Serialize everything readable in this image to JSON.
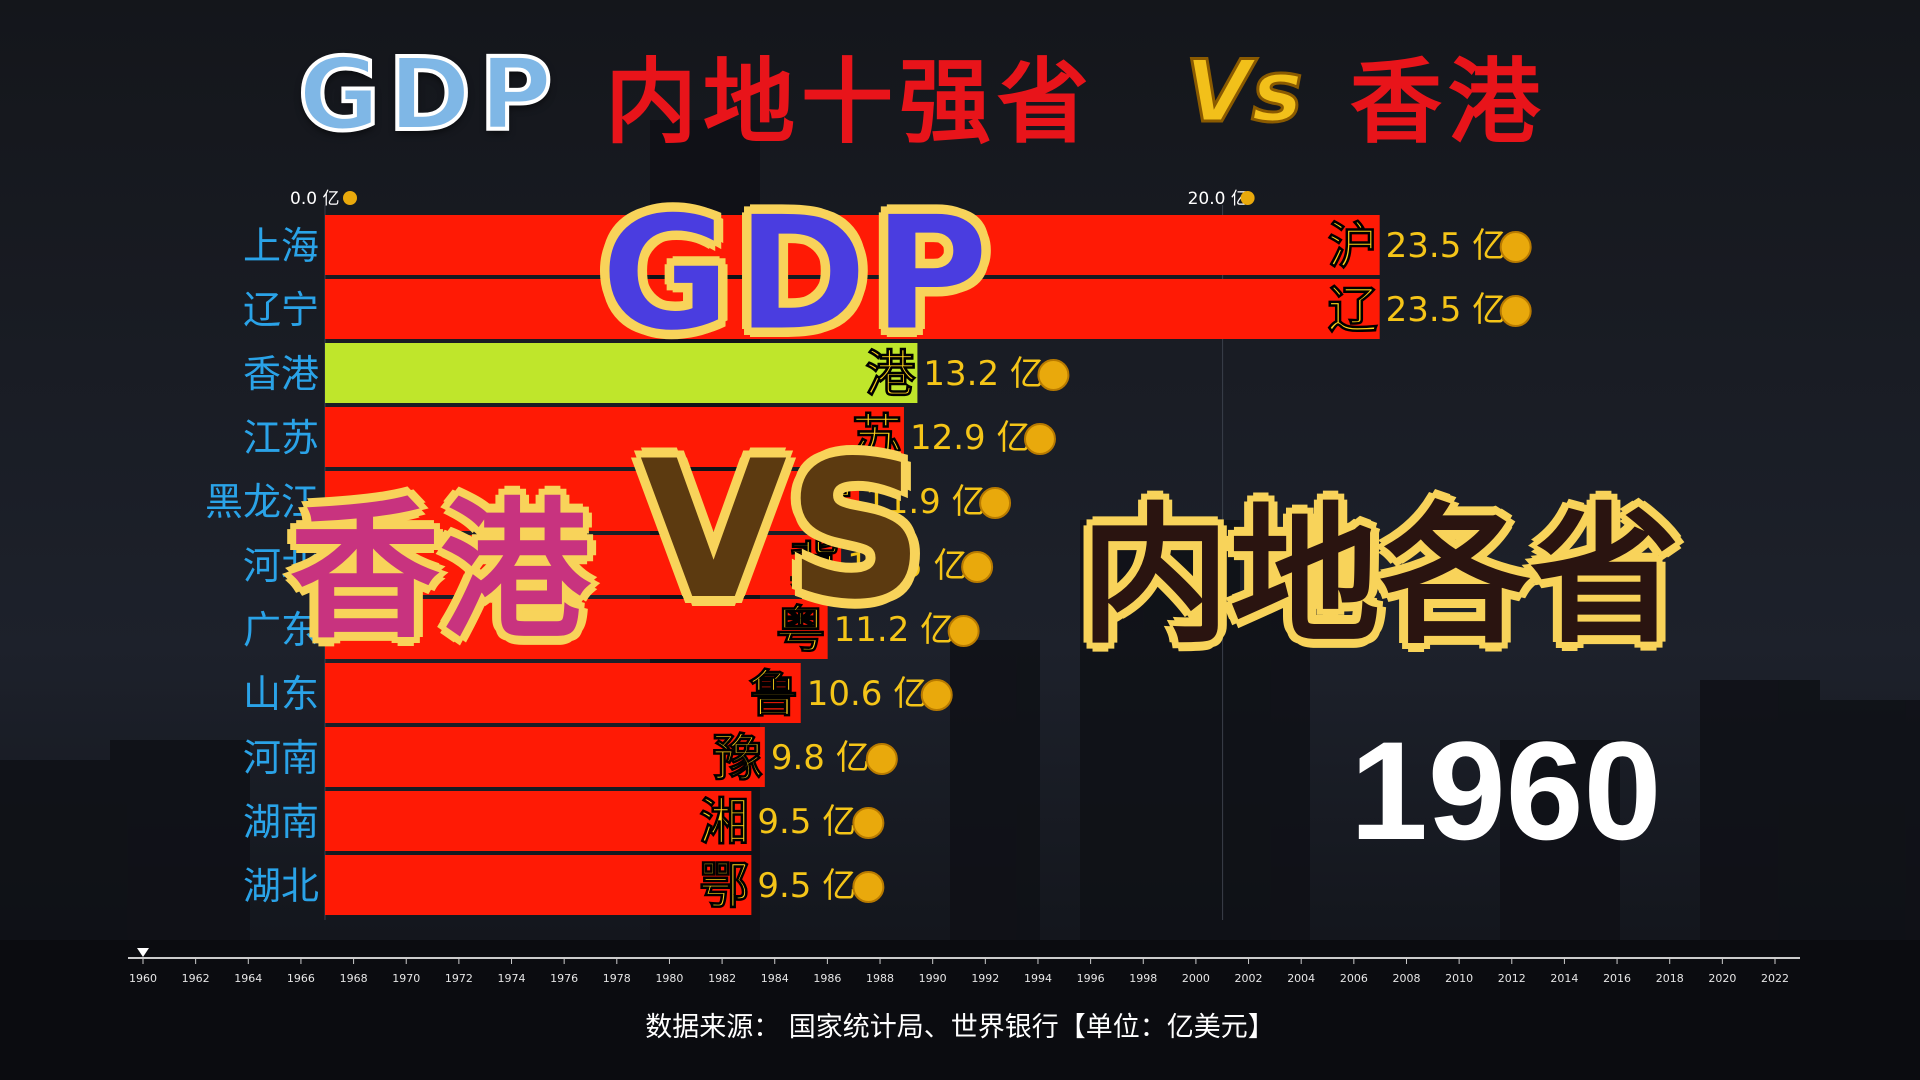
{
  "title": {
    "logo_text": "GDP",
    "left_text": "内地十强省",
    "vs_text": "Vs",
    "right_text": "香港"
  },
  "overlay": {
    "big_gdp": "GDP",
    "hongkong": "香港",
    "vs": "VS",
    "mainland": "内地各省"
  },
  "current_year": "1960",
  "source": "数据来源：  国家统计局、世界银行【单位：亿美元】",
  "colors": {
    "mainland_bar": "#ff1a05",
    "hongkong_bar": "#bfe62b",
    "province_label": "#2aa3e8",
    "value_label": "#f5c518",
    "abbr_label": "#ffd21a"
  },
  "chart_data": {
    "type": "bar",
    "orientation": "horizontal",
    "unit": "亿",
    "x_ticks": [
      {
        "value": 0.0,
        "label": "0.0 亿"
      },
      {
        "value": 20.0,
        "label": "20.0 亿"
      }
    ],
    "xlim": [
      0,
      25
    ],
    "categories": [
      "上海",
      "辽宁",
      "香港",
      "江苏",
      "黑龙江",
      "河北",
      "广东",
      "山东",
      "河南",
      "湖南",
      "湖北"
    ],
    "abbreviations": [
      "沪",
      "辽",
      "港",
      "苏",
      "黑",
      "冀",
      "粤",
      "鲁",
      "豫",
      "湘",
      "鄂"
    ],
    "values": [
      23.5,
      23.5,
      13.2,
      12.9,
      11.9,
      11.5,
      11.2,
      10.6,
      9.8,
      9.5,
      9.5
    ],
    "value_labels": [
      "23.5 亿",
      "23.5 亿",
      "13.2 亿",
      "12.9 亿",
      "11.9 亿",
      "11.5 亿",
      "11.2 亿",
      "10.6 亿",
      "9.8 亿",
      "9.5 亿",
      "9.5 亿"
    ],
    "highlight": "香港",
    "timeline": {
      "years": [
        "1960",
        "1962",
        "1964",
        "1966",
        "1968",
        "1970",
        "1972",
        "1974",
        "1976",
        "1978",
        "1980",
        "1982",
        "1984",
        "1986",
        "1988",
        "1990",
        "1992",
        "1994",
        "1996",
        "1998",
        "2000",
        "2002",
        "2004",
        "2006",
        "2008",
        "2010",
        "2012",
        "2014",
        "2016",
        "2018",
        "2020",
        "2022"
      ],
      "current": "1960"
    }
  }
}
